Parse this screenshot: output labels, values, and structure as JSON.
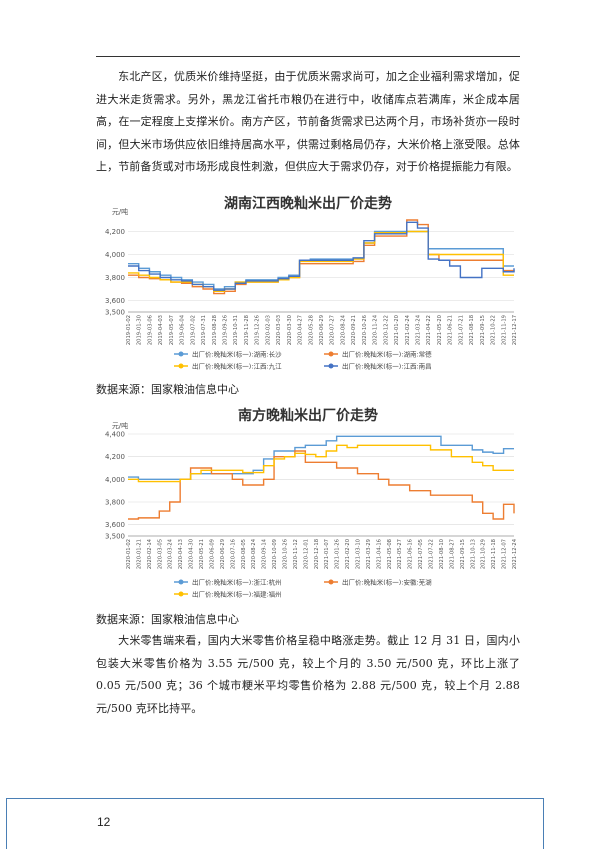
{
  "paragraph1": "东北产区，优质米价维持坚挺，由于优质米需求尚可，加之企业福利需求增加，促进大米走货需求。另外，黑龙江省托市粮仍在进行中，收储库点若满库，米企成本居高，在一定程度上支撑米价。南方产区，节前备货需求已达两个月，市场补货亦一段时间，但大米市场供应依旧维持居高水平，供需过剩格局仍存，大米价格上涨受限。总体上，节前备货或对市场形成良性刺激，但供应大于需求仍存，对于价格提振能力有限。",
  "source1": "数据来源：国家粮油信息中心",
  "source2": "数据来源：国家粮油信息中心",
  "paragraph2": "大米零售端来看，国内大米零售价格呈稳中略涨走势。截止 12 月 31 日，国内小包装大米零售价格为 3.55 元/500 克，较上个月的 3.50 元/500 克，环比上涨了 0.05 元/500 克；36 个城市粳米平均零售价格为 2.88 元/500 克，较上个月 2.88 元/500 克环比持平。",
  "page_number": "12",
  "chart_data": [
    {
      "type": "line",
      "title": "湖南江西晚籼米出厂价走势",
      "ylabel": "元/吨",
      "ylim": [
        3500,
        4300
      ],
      "yticks": [
        3500,
        3600,
        3800,
        4000,
        4200
      ],
      "ytick_labels": [
        "3,500",
        "3,600",
        "3,800",
        "4,000",
        "4,200"
      ],
      "grid": true,
      "legend_position": "bottom",
      "categories": [
        "2019-01-02",
        "2019-01-30",
        "2019-03-06",
        "2019-04-03",
        "2019-05-07",
        "2019-06-04",
        "2019-07-02",
        "2019-07-31",
        "2019-08-28",
        "2019-09-26",
        "2019-10-31",
        "2019-11-28",
        "2019-12-26",
        "2020-02-03",
        "2020-03-03",
        "2020-03-30",
        "2020-04-27",
        "2020-05-28",
        "2020-06-29",
        "2020-07-27",
        "2020-08-24",
        "2020-09-21",
        "2020-10-26",
        "2020-11-24",
        "2020-12-22",
        "2021-01-20",
        "2021-02-24",
        "2021-03-24",
        "2021-04-22",
        "2021-05-20",
        "2021-06-21",
        "2021-07-21",
        "2021-08-18",
        "2021-09-15",
        "2021-10-22",
        "2021-11-19",
        "2021-12-17"
      ],
      "series": [
        {
          "name": "出厂价:晚籼米(标一):湖南:长沙",
          "color": "#5b9bd5",
          "values": [
            3920,
            3880,
            3850,
            3820,
            3800,
            3780,
            3760,
            3740,
            3700,
            3720,
            3760,
            3780,
            3780,
            3780,
            3800,
            3820,
            3950,
            3960,
            3960,
            3960,
            3960,
            3970,
            4100,
            4200,
            4200,
            4200,
            4200,
            4200,
            4050,
            4050,
            4050,
            4050,
            4050,
            4050,
            4050,
            3900,
            3900
          ]
        },
        {
          "name": "出厂价:晚籼米(标一):湖南:常德",
          "color": "#ed7d31",
          "values": [
            3820,
            3800,
            3790,
            3780,
            3760,
            3750,
            3720,
            3700,
            3660,
            3680,
            3740,
            3760,
            3760,
            3760,
            3780,
            3800,
            3920,
            3920,
            3920,
            3920,
            3920,
            3940,
            4080,
            4160,
            4160,
            4160,
            4300,
            4260,
            4000,
            3950,
            3950,
            3950,
            3950,
            3950,
            3950,
            3860,
            3850
          ]
        },
        {
          "name": "出厂价:晚籼米(标一):江西:九江",
          "color": "#ffc000",
          "values": [
            3840,
            3820,
            3800,
            3780,
            3760,
            3760,
            3740,
            3720,
            3680,
            3700,
            3760,
            3760,
            3760,
            3760,
            3780,
            3800,
            3940,
            3940,
            3940,
            3940,
            3940,
            3960,
            4100,
            4190,
            4190,
            4190,
            4200,
            4200,
            4000,
            4000,
            4000,
            4000,
            4000,
            4000,
            4000,
            3820,
            3820
          ]
        },
        {
          "name": "出厂价:晚籼米(标一):江西:南昌",
          "color": "#4472c4",
          "values": [
            3900,
            3860,
            3830,
            3800,
            3780,
            3770,
            3740,
            3720,
            3690,
            3700,
            3750,
            3770,
            3770,
            3770,
            3790,
            3810,
            3950,
            3950,
            3950,
            3950,
            3950,
            3970,
            4120,
            4180,
            4180,
            4180,
            4280,
            4230,
            3960,
            3950,
            3900,
            3800,
            3800,
            3880,
            3880,
            3850,
            3880
          ]
        }
      ]
    },
    {
      "type": "line",
      "title": "南方晚籼米出厂价走势",
      "ylabel": "元/吨",
      "ylim": [
        3500,
        4400
      ],
      "yticks": [
        3500,
        3600,
        3800,
        4000,
        4200,
        4400
      ],
      "ytick_labels": [
        "3,500",
        "3,600",
        "3,800",
        "4,000",
        "4,200",
        "4,400"
      ],
      "grid": true,
      "legend_position": "bottom",
      "categories": [
        "2020-01-02",
        "2020-01-21",
        "2020-02-14",
        "2020-03-05",
        "2020-03-24",
        "2020-04-13",
        "2020-04-30",
        "2020-05-21",
        "2020-06-09",
        "2020-06-29",
        "2020-07-16",
        "2020-08-05",
        "2020-08-24",
        "2020-09-14",
        "2020-10-09",
        "2020-10-26",
        "2020-11-12",
        "2020-12-01",
        "2020-12-18",
        "2021-01-07",
        "2021-01-26",
        "2021-02-20",
        "2021-03-10",
        "2021-03-29",
        "2021-04-16",
        "2021-05-08",
        "2021-05-27",
        "2021-06-16",
        "2021-07-05",
        "2021-07-22",
        "2021-08-10",
        "2021-08-27",
        "2021-09-15",
        "2021-10-13",
        "2021-10-29",
        "2021-11-18",
        "2021-12-07",
        "2021-12-24"
      ],
      "series": [
        {
          "name": "出厂价:晚籼米(标一):浙江:杭州",
          "color": "#5b9bd5",
          "values": [
            4020,
            4000,
            4000,
            4000,
            4000,
            4000,
            4050,
            4050,
            4050,
            4050,
            4050,
            4050,
            4080,
            4180,
            4250,
            4250,
            4280,
            4300,
            4300,
            4340,
            4380,
            4380,
            4380,
            4380,
            4380,
            4380,
            4380,
            4380,
            4380,
            4380,
            4300,
            4300,
            4300,
            4260,
            4240,
            4230,
            4270,
            4270
          ]
        },
        {
          "name": "出厂价:晚籼米(标一):安徽:芜湖",
          "color": "#ed7d31",
          "values": [
            3650,
            3660,
            3660,
            3720,
            3800,
            4000,
            4100,
            4100,
            4050,
            4050,
            4000,
            3950,
            3950,
            4000,
            4200,
            4200,
            4250,
            4150,
            4150,
            4150,
            4100,
            4100,
            4050,
            4050,
            4000,
            3950,
            3950,
            3900,
            3900,
            3860,
            3860,
            3860,
            3860,
            3800,
            3700,
            3650,
            3780,
            3700
          ]
        },
        {
          "name": "出厂价:晚籼米(标一):福建:福州",
          "color": "#ffc000",
          "values": [
            4000,
            3980,
            3980,
            3980,
            3980,
            4000,
            4050,
            4080,
            4080,
            4080,
            4080,
            4060,
            4060,
            4120,
            4180,
            4200,
            4230,
            4220,
            4200,
            4250,
            4300,
            4280,
            4300,
            4300,
            4300,
            4300,
            4300,
            4300,
            4300,
            4260,
            4260,
            4200,
            4200,
            4150,
            4120,
            4080,
            4080,
            4080
          ]
        }
      ]
    }
  ]
}
